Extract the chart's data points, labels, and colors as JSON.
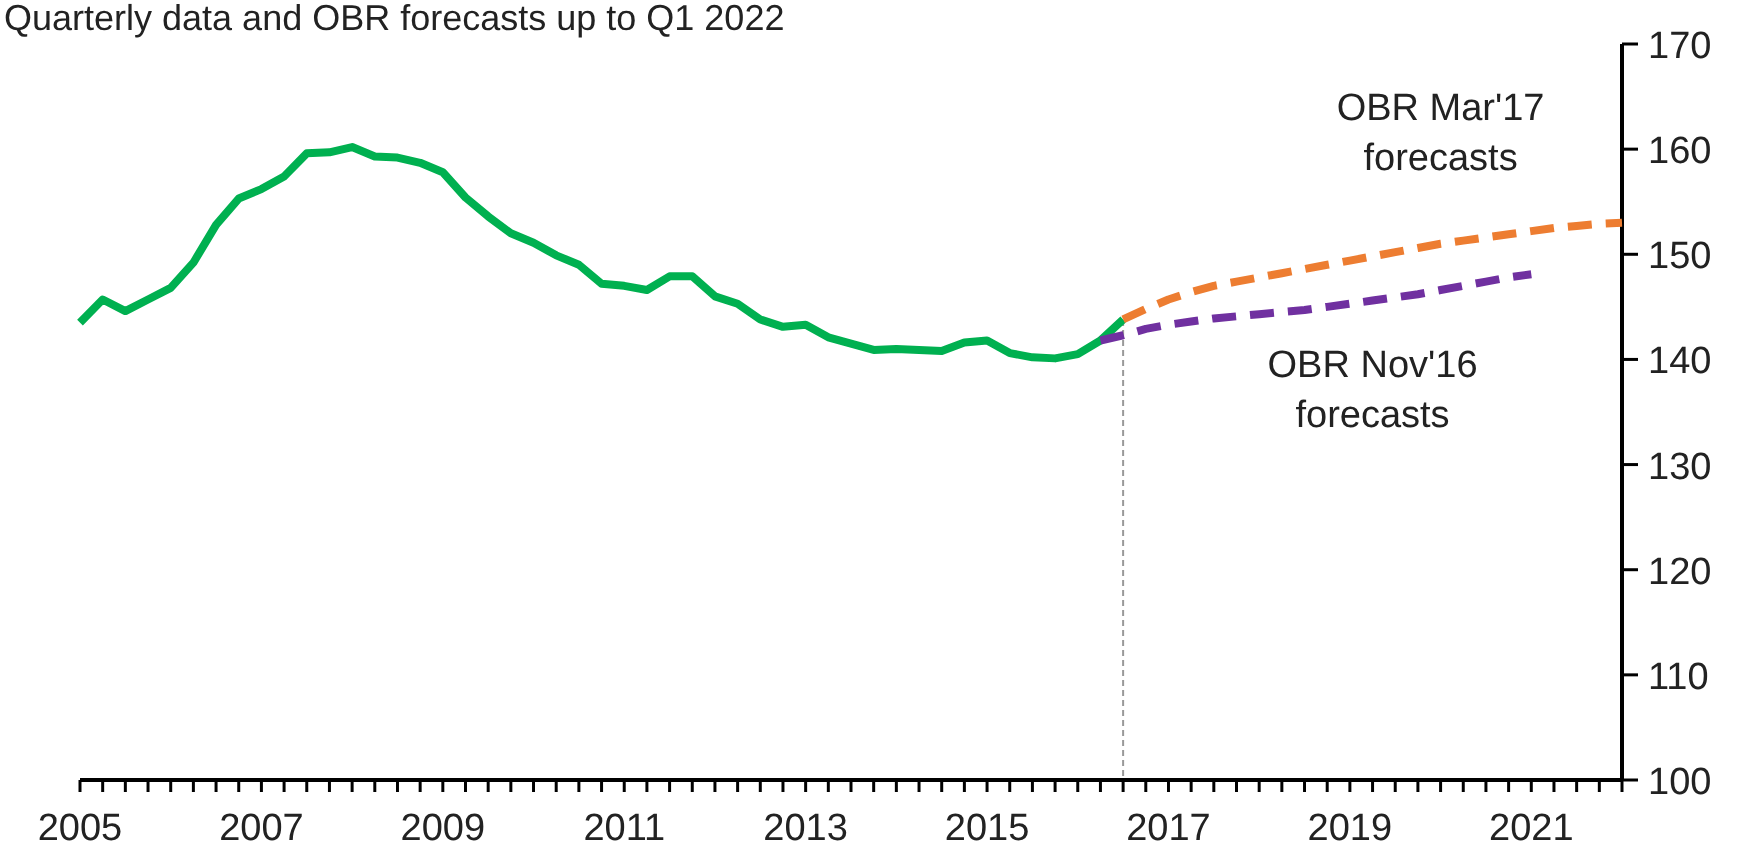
{
  "chart_data": {
    "type": "line",
    "title": "Quarterly data and OBR forecasts up to Q1 2022",
    "line_style": "solid",
    "marker": "none",
    "grid": false,
    "xlim": [
      2005,
      2022
    ],
    "ylim": [
      100,
      170
    ],
    "yticks": [
      100,
      110,
      120,
      130,
      140,
      150,
      160,
      170
    ],
    "xticks": [
      2005,
      {
        "value": 2005.25,
        "label": null
      },
      {
        "value": 2005.5,
        "label": null
      },
      {
        "value": 2005.75,
        "label": null
      },
      {
        "value": 2006,
        "label": null
      },
      {
        "value": 2006.25,
        "label": null
      },
      {
        "value": 2006.5,
        "label": null
      },
      {
        "value": 2006.75,
        "label": null
      },
      2007,
      {
        "value": 2007.25,
        "label": null
      },
      {
        "value": 2007.5,
        "label": null
      },
      {
        "value": 2007.75,
        "label": null
      },
      {
        "value": 2008,
        "label": null
      },
      {
        "value": 2008.25,
        "label": null
      },
      {
        "value": 2008.5,
        "label": null
      },
      {
        "value": 2008.75,
        "label": null
      },
      2009,
      {
        "value": 2009.25,
        "label": null
      },
      {
        "value": 2009.5,
        "label": null
      },
      {
        "value": 2009.75,
        "label": null
      },
      {
        "value": 2010,
        "label": null
      },
      {
        "value": 2010.25,
        "label": null
      },
      {
        "value": 2010.5,
        "label": null
      },
      {
        "value": 2010.75,
        "label": null
      },
      2011,
      {
        "value": 2011.25,
        "label": null
      },
      {
        "value": 2011.5,
        "label": null
      },
      {
        "value": 2011.75,
        "label": null
      },
      {
        "value": 2012,
        "label": null
      },
      {
        "value": 2012.25,
        "label": null
      },
      {
        "value": 2012.5,
        "label": null
      },
      {
        "value": 2012.75,
        "label": null
      },
      2013,
      {
        "value": 2013.25,
        "label": null
      },
      {
        "value": 2013.5,
        "label": null
      },
      {
        "value": 2013.75,
        "label": null
      },
      {
        "value": 2014,
        "label": null
      },
      {
        "value": 2014.25,
        "label": null
      },
      {
        "value": 2014.5,
        "label": null
      },
      {
        "value": 2014.75,
        "label": null
      },
      2015,
      {
        "value": 2015.25,
        "label": null
      },
      {
        "value": 2015.5,
        "label": null
      },
      {
        "value": 2015.75,
        "label": null
      },
      {
        "value": 2016,
        "label": null
      },
      {
        "value": 2016.25,
        "label": null
      },
      {
        "value": 2016.5,
        "label": null
      },
      {
        "value": 2016.75,
        "label": null
      },
      2017,
      {
        "value": 2017.25,
        "label": null
      },
      {
        "value": 2017.5,
        "label": null
      },
      {
        "value": 2017.75,
        "label": null
      },
      {
        "value": 2018,
        "label": null
      },
      {
        "value": 2018.25,
        "label": null
      },
      {
        "value": 2018.5,
        "label": null
      },
      {
        "value": 2018.75,
        "label": null
      },
      2019,
      {
        "value": 2019.25,
        "label": null
      },
      {
        "value": 2019.5,
        "label": null
      },
      {
        "value": 2019.75,
        "label": null
      },
      {
        "value": 2020,
        "label": null
      },
      {
        "value": 2020.25,
        "label": null
      },
      {
        "value": 2020.5,
        "label": null
      },
      {
        "value": 2020.75,
        "label": null
      },
      2021,
      {
        "value": 2021.25,
        "label": null
      },
      {
        "value": 2021.5,
        "label": null
      },
      {
        "value": 2021.75,
        "label": null
      },
      {
        "value": 2022,
        "label": null
      }
    ],
    "ref_lines": [
      {
        "axis": "x",
        "value": 2016.5,
        "label": null,
        "color": "#999999",
        "line_style": "dashed"
      }
    ],
    "series": [
      {
        "color": "#00b050",
        "x": [
          2005,
          2005.25,
          2005.5,
          2005.75,
          2006,
          2006.25,
          2006.5,
          2006.75,
          2007,
          2007.25,
          2007.5,
          2007.75,
          2008,
          2008.25,
          2008.5,
          2008.75,
          2009,
          2009.25,
          2009.5,
          2009.75,
          2010,
          2010.25,
          2010.5,
          2010.75,
          2011,
          2011.25,
          2011.5,
          2011.75,
          2012,
          2012.25,
          2012.5,
          2012.75,
          2013,
          2013.25,
          2013.5,
          2013.75,
          2014,
          2014.25,
          2014.5,
          2014.75,
          2015,
          2015.25,
          2015.5,
          2015.75,
          2016,
          2016.25,
          2016.5
        ],
        "values": [
          143.5,
          145.7,
          144.6,
          145.7,
          146.8,
          149.2,
          152.8,
          155.3,
          156.2,
          157.4,
          159.6,
          159.7,
          160.2,
          159.3,
          159.2,
          158.7,
          157.8,
          155.4,
          153.6,
          152.0,
          151.1,
          149.9,
          149.0,
          147.2,
          147.0,
          146.6,
          147.9,
          147.9,
          146.0,
          145.3,
          143.8,
          143.1,
          143.3,
          142.1,
          141.5,
          140.9,
          141.0,
          140.9,
          140.8,
          141.6,
          141.8,
          140.6,
          140.2,
          140.1,
          140.5,
          141.8,
          143.8
        ]
      },
      {
        "name": "OBR Mar'17 forecasts",
        "color": "#ed7d31",
        "line_style": "dashed",
        "x": [
          2016.5,
          2016.75,
          2017,
          2017.25,
          2017.5,
          2017.75,
          2018,
          2018.25,
          2018.5,
          2018.75,
          2019,
          2019.25,
          2019.5,
          2019.75,
          2020,
          2020.25,
          2020.5,
          2020.75,
          2021,
          2021.25,
          2021.5,
          2021.75,
          2022
        ],
        "values": [
          143.8,
          144.8,
          145.7,
          146.4,
          147.0,
          147.4,
          147.8,
          148.2,
          148.6,
          149.0,
          149.4,
          149.8,
          150.2,
          150.6,
          151.0,
          151.3,
          151.6,
          151.9,
          152.2,
          152.5,
          152.7,
          152.9,
          153.0
        ]
      },
      {
        "name": "OBR Nov'16 forecasts",
        "color": "#7030a0",
        "line_style": "dashed",
        "x": [
          2016.25,
          2016.5,
          2016.75,
          2017,
          2017.25,
          2017.5,
          2017.75,
          2018,
          2018.25,
          2018.5,
          2018.75,
          2019,
          2019.25,
          2019.5,
          2019.75,
          2020,
          2020.25,
          2020.5,
          2020.75,
          2021
        ],
        "values": [
          141.8,
          142.3,
          142.9,
          143.3,
          143.6,
          143.9,
          144.1,
          144.3,
          144.5,
          144.7,
          145.0,
          145.3,
          145.6,
          145.9,
          146.2,
          146.6,
          147.0,
          147.4,
          147.8,
          148.1
        ]
      }
    ]
  }
}
